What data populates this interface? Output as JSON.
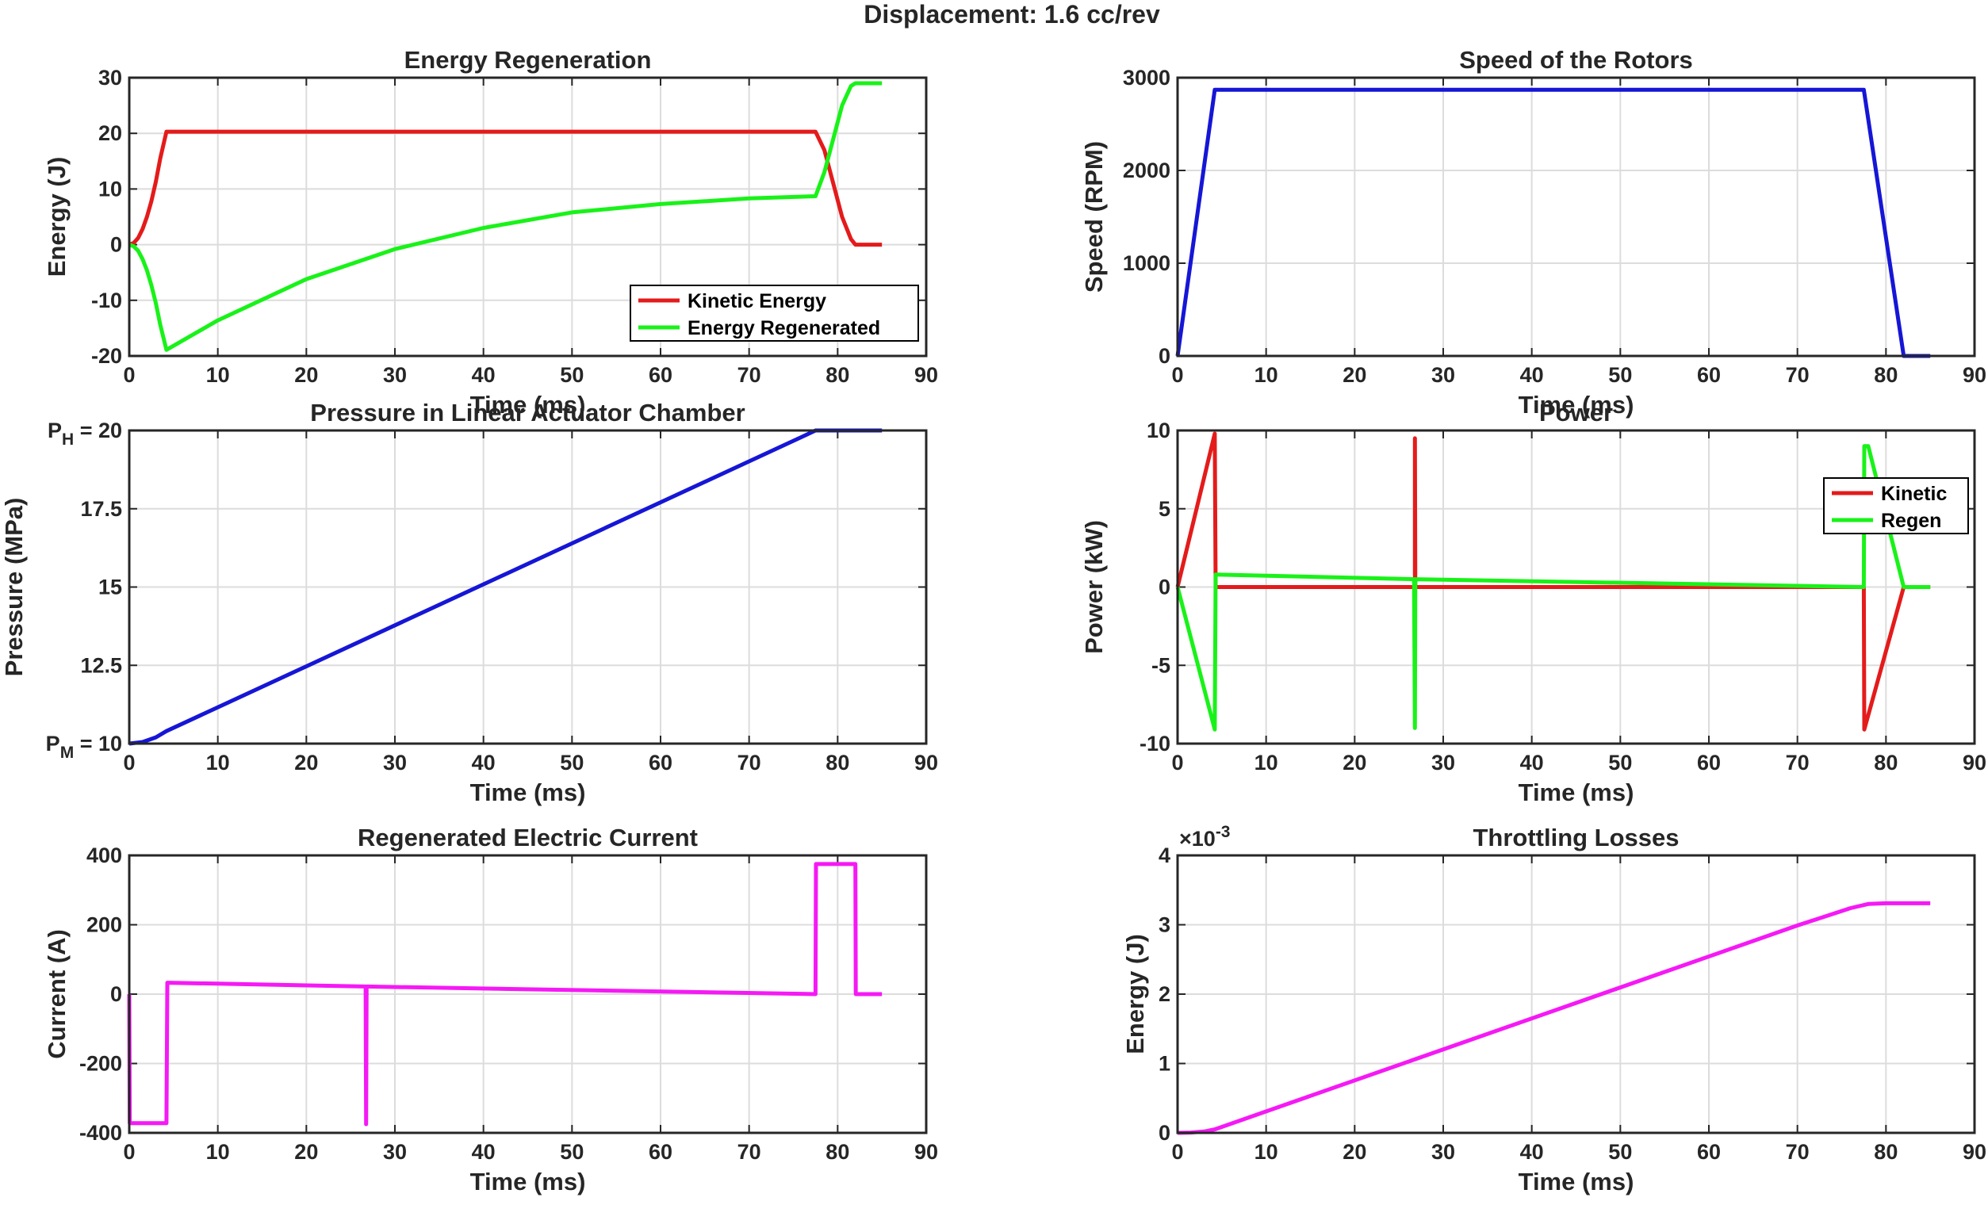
{
  "figure": {
    "suptitle": "Displacement: 1.6 cc/rev"
  },
  "colors": {
    "red": "#e41b1b",
    "green": "#19f219",
    "blue": "#1616d6",
    "magenta": "#f519f5",
    "axis": "#262626",
    "grid": "#dcdcdc"
  },
  "chart_data": [
    {
      "type": "line",
      "title": "Energy Regeneration",
      "xlabel": "Time (ms)",
      "ylabel": "Energy (J)",
      "xlim": [
        0,
        90
      ],
      "ylim": [
        -20,
        30
      ],
      "xticks": [
        0,
        10,
        20,
        30,
        40,
        50,
        60,
        70,
        80,
        90
      ],
      "yticks": [
        -20,
        -10,
        0,
        10,
        20,
        30
      ],
      "ytick_labels": [
        "-20",
        "-10",
        "0",
        "10",
        "20",
        "30"
      ],
      "grid": true,
      "legend": "bottom-right",
      "series": [
        {
          "name": "Kinetic Energy",
          "color": "#e41b1b",
          "points": [
            [
              0,
              0
            ],
            [
              0.5,
              0.3
            ],
            [
              1,
              1.2
            ],
            [
              1.5,
              2.8
            ],
            [
              2,
              5
            ],
            [
              2.5,
              7.8
            ],
            [
              3,
              11.3
            ],
            [
              3.5,
              15.5
            ],
            [
              4.2,
              20.3
            ],
            [
              77.5,
              20.3
            ],
            [
              78.5,
              17
            ],
            [
              79.5,
              11
            ],
            [
              80.5,
              5
            ],
            [
              81.5,
              1
            ],
            [
              82,
              0
            ],
            [
              85,
              0
            ]
          ]
        },
        {
          "name": "Energy Regenerated",
          "color": "#19f219",
          "points": [
            [
              0,
              0
            ],
            [
              0.5,
              -0.3
            ],
            [
              1,
              -1.1
            ],
            [
              1.5,
              -2.6
            ],
            [
              2,
              -4.6
            ],
            [
              2.5,
              -7.3
            ],
            [
              3,
              -10.5
            ],
            [
              3.5,
              -14.4
            ],
            [
              4.2,
              -18.9
            ],
            [
              10,
              -13.6
            ],
            [
              20,
              -6.2
            ],
            [
              30,
              -0.8
            ],
            [
              40,
              3
            ],
            [
              50,
              5.8
            ],
            [
              60,
              7.3
            ],
            [
              70,
              8.3
            ],
            [
              77.5,
              8.7
            ],
            [
              78.5,
              13
            ],
            [
              79.5,
              19
            ],
            [
              80.5,
              25
            ],
            [
              81.5,
              28.5
            ],
            [
              82,
              29
            ],
            [
              85,
              29
            ]
          ]
        }
      ]
    },
    {
      "type": "line",
      "title": "Speed of the Rotors",
      "xlabel": "Time (ms)",
      "ylabel": "Speed (RPM)",
      "xlim": [
        0,
        90
      ],
      "ylim": [
        0,
        3000
      ],
      "xticks": [
        0,
        10,
        20,
        30,
        40,
        50,
        60,
        70,
        80,
        90
      ],
      "yticks": [
        0,
        1000,
        2000,
        3000
      ],
      "ytick_labels": [
        "0",
        "1000",
        "2000",
        "3000"
      ],
      "grid": true,
      "series": [
        {
          "name": "",
          "color": "#1616d6",
          "points": [
            [
              0,
              0
            ],
            [
              4.2,
              2870
            ],
            [
              77.5,
              2870
            ],
            [
              82,
              0
            ],
            [
              85,
              0
            ]
          ]
        }
      ]
    },
    {
      "type": "line",
      "title": "Pressure in Linear Actuator Chamber",
      "xlabel": "Time (ms)",
      "ylabel": "Pressure (MPa)",
      "xlim": [
        0,
        90
      ],
      "ylim": [
        10,
        20
      ],
      "xticks": [
        0,
        10,
        20,
        30,
        40,
        50,
        60,
        70,
        80,
        90
      ],
      "yticks": [
        10,
        12.5,
        15,
        17.5,
        20
      ],
      "ytick_labels": [
        "P_M = 10",
        "12.5",
        "15",
        "17.5",
        "P_H = 20"
      ],
      "grid": true,
      "series": [
        {
          "name": "",
          "color": "#1616d6",
          "points": [
            [
              0,
              10
            ],
            [
              1.5,
              10.05
            ],
            [
              3,
              10.2
            ],
            [
              4.2,
              10.4
            ],
            [
              76,
              19.8
            ],
            [
              77.5,
              20
            ],
            [
              85,
              20
            ]
          ]
        }
      ]
    },
    {
      "type": "line",
      "title": "Power",
      "xlabel": "Time (ms)",
      "ylabel": "Power (kW)",
      "xlim": [
        0,
        90
      ],
      "ylim": [
        -10,
        10
      ],
      "xticks": [
        0,
        10,
        20,
        30,
        40,
        50,
        60,
        70,
        80,
        90
      ],
      "yticks": [
        -10,
        -5,
        0,
        5,
        10
      ],
      "ytick_labels": [
        "-10",
        "-5",
        "0",
        "5",
        "10"
      ],
      "grid": true,
      "legend": "top-right",
      "series": [
        {
          "name": "Kinetic",
          "color": "#e41b1b",
          "points": [
            [
              0,
              0
            ],
            [
              4.2,
              9.8
            ],
            [
              4.3,
              0
            ],
            [
              26.8,
              0
            ],
            [
              26.8,
              9.5
            ],
            [
              26.85,
              0
            ],
            [
              77.5,
              0
            ],
            [
              77.55,
              -9.1
            ],
            [
              82,
              0
            ],
            [
              85,
              0
            ]
          ]
        },
        {
          "name": "Regen",
          "color": "#19f219",
          "points": [
            [
              0,
              0
            ],
            [
              4.2,
              -9.1
            ],
            [
              4.3,
              0.8
            ],
            [
              26.7,
              0.5
            ],
            [
              26.8,
              -9
            ],
            [
              26.85,
              0.5
            ],
            [
              77.5,
              0
            ],
            [
              77.55,
              9
            ],
            [
              78,
              9
            ],
            [
              82,
              0
            ],
            [
              85,
              0
            ]
          ]
        }
      ]
    },
    {
      "type": "line",
      "title": "Regenerated Electric Current",
      "xlabel": "Time (ms)",
      "ylabel": "Current (A)",
      "xlim": [
        0,
        90
      ],
      "ylim": [
        -400,
        400
      ],
      "xticks": [
        0,
        10,
        20,
        30,
        40,
        50,
        60,
        70,
        80,
        90
      ],
      "yticks": [
        -400,
        -200,
        0,
        200,
        400
      ],
      "ytick_labels": [
        "-400",
        "-200",
        "0",
        "200",
        "400"
      ],
      "grid": true,
      "series": [
        {
          "name": "",
          "color": "#f519f5",
          "points": [
            [
              0,
              0
            ],
            [
              0.05,
              -372
            ],
            [
              4.2,
              -372
            ],
            [
              4.3,
              33
            ],
            [
              26.7,
              22
            ],
            [
              26.75,
              -375
            ],
            [
              26.8,
              22
            ],
            [
              77.5,
              0
            ],
            [
              77.55,
              375
            ],
            [
              82,
              375
            ],
            [
              82.05,
              0
            ],
            [
              85,
              0
            ]
          ]
        }
      ]
    },
    {
      "type": "line",
      "title": "Throttling Losses",
      "xlabel": "Time (ms)",
      "ylabel": "Energy (J)",
      "xlim": [
        0,
        90
      ],
      "ylim": [
        0,
        0.004
      ],
      "xticks": [
        0,
        10,
        20,
        30,
        40,
        50,
        60,
        70,
        80,
        90
      ],
      "yticks": [
        0,
        0.001,
        0.002,
        0.003,
        0.004
      ],
      "ytick_labels": [
        "0",
        "1",
        "2",
        "3",
        "4"
      ],
      "exponent_label": "×10",
      "exponent_power": "-3",
      "grid": true,
      "series": [
        {
          "name": "",
          "color": "#f519f5",
          "points": [
            [
              0,
              0
            ],
            [
              1.5,
              5e-06
            ],
            [
              3,
              2e-05
            ],
            [
              4.2,
              5e-05
            ],
            [
              70,
              0.00299
            ],
            [
              76,
              0.00324
            ],
            [
              78,
              0.0033
            ],
            [
              80,
              0.00331
            ],
            [
              85,
              0.00331
            ]
          ]
        }
      ]
    }
  ]
}
